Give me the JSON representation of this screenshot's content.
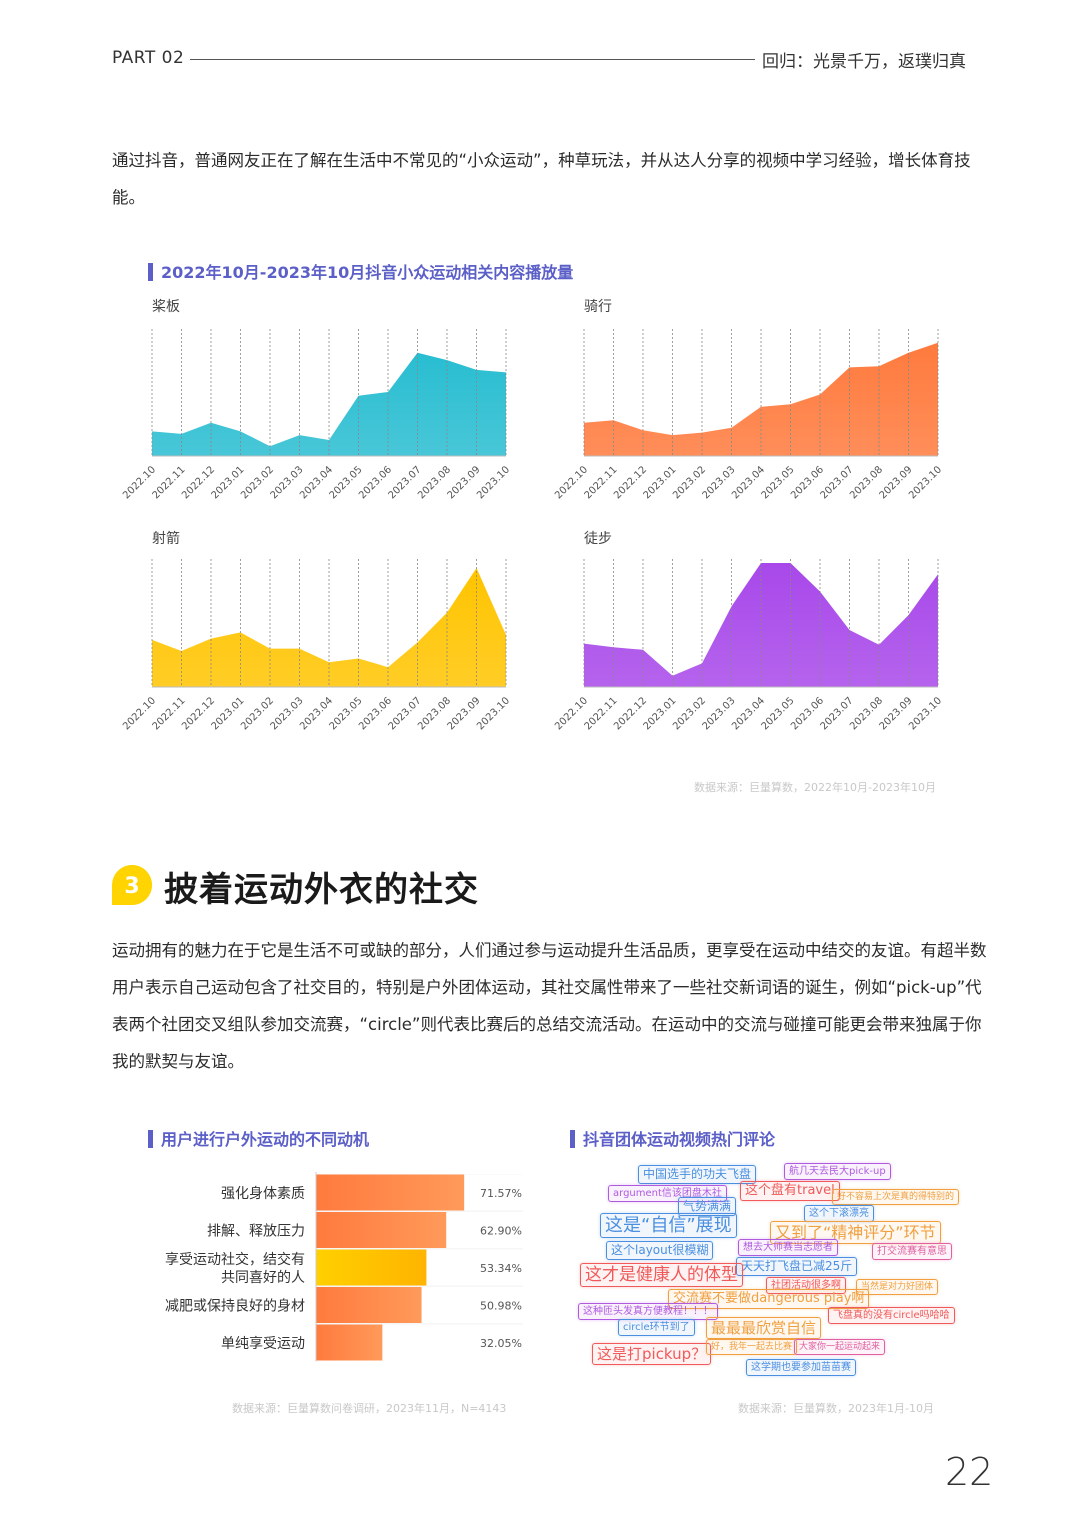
{
  "header": {
    "part": "PART 02",
    "title": "回归：光景千万，返璞归真"
  },
  "intro": "通过抖音，普通网友正在了解在生活中不常见的“小众运动”，种草玩法，并从达人分享的视频中学习经验，增长体育技能。",
  "chart_data": [
    {
      "type": "area",
      "title": "2022年10月-2023年10月抖音小众运动相关内容播放量",
      "source": "数据来源：巨量算数，2022年10月-2023年10月",
      "categories": [
        "2022.10",
        "2022.11",
        "2022.12",
        "2023.01",
        "2023.02",
        "2023.03",
        "2023.04",
        "2023.05",
        "2023.06",
        "2023.07",
        "2023.08",
        "2023.09",
        "2023.10"
      ],
      "panels": [
        {
          "name": "桨板",
          "color": "#28bdd1",
          "values": [
            20,
            18,
            27,
            20,
            8,
            17,
            13,
            49,
            52,
            84,
            78,
            70,
            68
          ]
        },
        {
          "name": "骑行",
          "color": "#ff7a3d",
          "values": [
            27,
            29,
            21,
            17,
            19,
            23,
            40,
            42,
            50,
            72,
            73,
            84,
            92
          ]
        },
        {
          "name": "射箭",
          "color": "#ffc400",
          "values": [
            38,
            29,
            39,
            44,
            31,
            31,
            20,
            23,
            16,
            36,
            60,
            96,
            42
          ]
        },
        {
          "name": "徒步",
          "color": "#a848ea",
          "values": [
            35,
            32,
            30,
            9,
            19,
            65,
            100,
            100,
            77,
            46,
            34,
            58,
            91
          ]
        }
      ],
      "ylim": [
        0,
        100
      ]
    },
    {
      "type": "bar",
      "title": "用户进行户外运动的不同动机",
      "source": "数据来源：巨量算数问卷调研，2023年11月，N=4143",
      "categories": [
        "强化身体素质",
        "排解、释放压力",
        "享受运动社交，结交有共同喜好的人",
        "减肥或保持良好的身材",
        "单纯享受运动"
      ],
      "label_lines": [
        [
          "强化身体素质"
        ],
        [
          "排解、释放压力"
        ],
        [
          "享受运动社交，结交有",
          "共同喜好的人"
        ],
        [
          "减肥或保持良好的身材"
        ],
        [
          "单纯享受运动"
        ]
      ],
      "values": [
        71.57,
        62.9,
        53.34,
        50.98,
        32.05
      ],
      "value_labels": [
        "71.57%",
        "62.90%",
        "53.34%",
        "50.98%",
        "32.05%"
      ],
      "xlim": [
        0,
        100
      ]
    }
  ],
  "section": {
    "number": "3",
    "title": "披着运动外衣的社交"
  },
  "body": "运动拥有的魅力在于它是生活不可或缺的部分，人们通过参与运动提升生活品质，更享受在运动中结交的友谊。有超半数用户表示自己运动包含了社交目的，特别是户外团体运动，其社交属性带来了一些社交新词语的诞生，例如“pick-up”代表两个社团交叉组队参加交流赛，“circle”则代表比赛后的总结交流活动。在运动中的交流与碰撞可能更会带来独属于你我的默契与友谊。",
  "wordcloud": {
    "title": "抖音团体运动视频热门评论",
    "source": "数据来源：巨量算数，2023年1月-10月",
    "colors": {
      "blue": "#4a8fe0",
      "red": "#f05a5a",
      "orange": "#f0a040",
      "purple": "#b05ae0",
      "pink": "#e060a0"
    },
    "tags": [
      {
        "text": "中国选手的功夫飞盘",
        "color": "#4a8fe0"
      },
      {
        "text": "航几天去民大pick-up",
        "color": "#b05ae0"
      },
      {
        "text": "argument信该团盘木社",
        "color": "#b05ae0"
      },
      {
        "text": "这个盘有travel",
        "color": "#f05a5a"
      },
      {
        "text": "好不容易上次是真的得特别的",
        "color": "#f0a040"
      },
      {
        "text": "气势满满",
        "color": "#4a8fe0"
      },
      {
        "text": "这个下滚漂亮",
        "color": "#4a8fe0"
      },
      {
        "text": "这是“自信”展现",
        "color": "#4a8fe0"
      },
      {
        "text": "又到了“精神评分”环节",
        "color": "#f0a040"
      },
      {
        "text": "这个layout很模糊",
        "color": "#4a8fe0"
      },
      {
        "text": "想去大师赛当志愿者",
        "color": "#b05ae0"
      },
      {
        "text": "打交流赛有意思",
        "color": "#e060a0"
      },
      {
        "text": "天天打飞盘已减25斤",
        "color": "#4a8fe0"
      },
      {
        "text": "这才是健康人的体型",
        "color": "#f05a5a"
      },
      {
        "text": "社团活动很多啊",
        "color": "#f05a5a"
      },
      {
        "text": "当然是对力好团体",
        "color": "#f0a040"
      },
      {
        "text": "交流赛不要做dangerous play啊",
        "color": "#f0a040"
      },
      {
        "text": "这种匝头发真方便教程！！！",
        "color": "#b05ae0"
      },
      {
        "text": "飞盘真的没有circle吗哈哈",
        "color": "#f05a5a"
      },
      {
        "text": "circle环节到了",
        "color": "#4a8fe0"
      },
      {
        "text": "最最最欣赏自信",
        "color": "#f0a040"
      },
      {
        "text": "这是打pickup？",
        "color": "#f05a5a"
      },
      {
        "text": "好，我年一起去比赛",
        "color": "#f0a040"
      },
      {
        "text": "大家你一起运动起来",
        "color": "#e060a0"
      },
      {
        "text": "这学期也要参加苗苗赛",
        "color": "#4a8fe0"
      }
    ]
  },
  "page_number": "22"
}
